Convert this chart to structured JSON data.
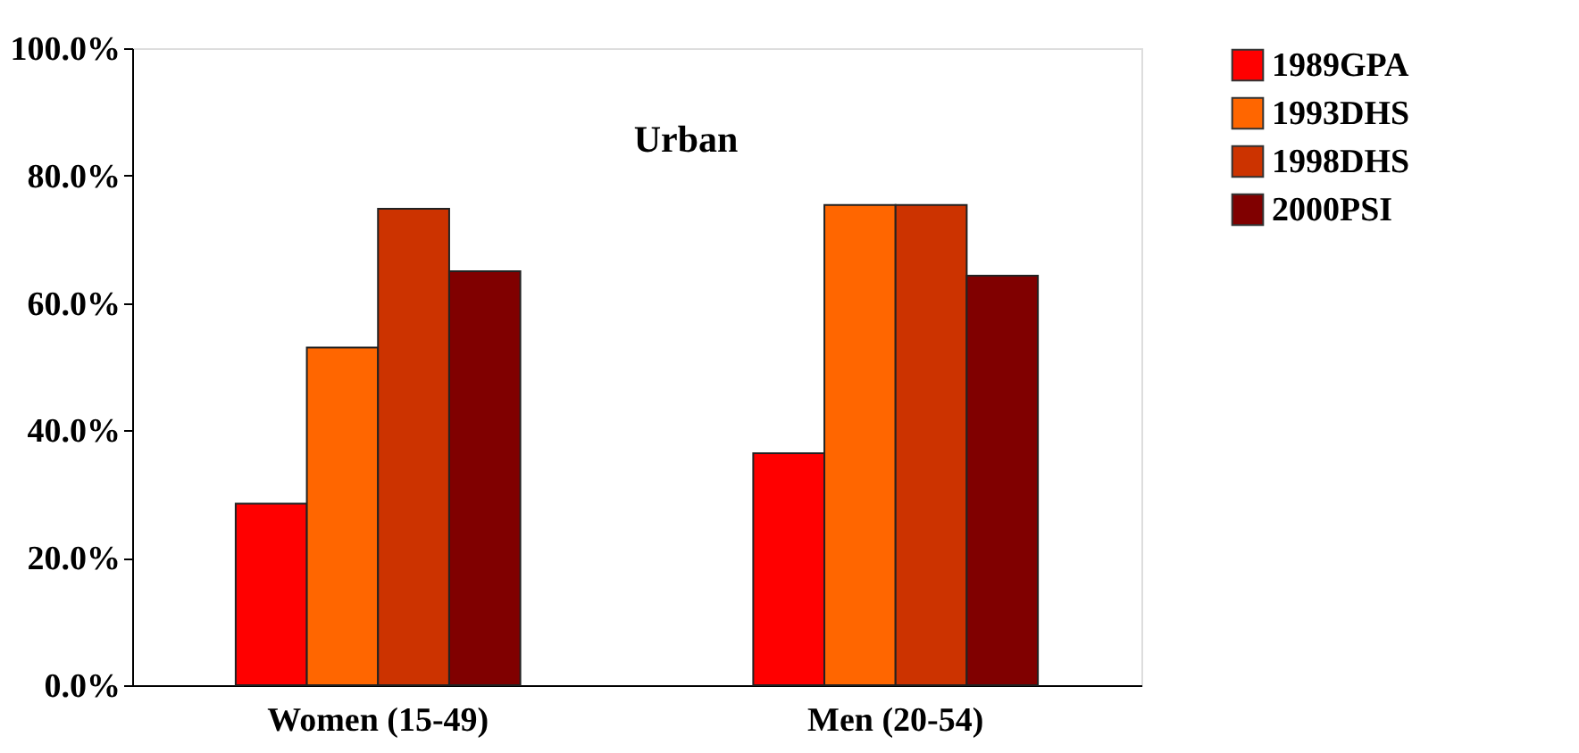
{
  "chart_data": {
    "type": "bar",
    "title": "Urban",
    "categories": [
      "Women (15-49)",
      "Men (20-54)"
    ],
    "series": [
      {
        "name": "1989GPA",
        "color": "#ff0000",
        "values": [
          28.5,
          36.4
        ]
      },
      {
        "name": "1993DHS",
        "color": "#ff6600",
        "values": [
          53.0,
          75.4
        ]
      },
      {
        "name": "1998DHS",
        "color": "#cc3300",
        "values": [
          74.8,
          75.4
        ]
      },
      {
        "name": "2000PSI",
        "color": "#800000",
        "values": [
          65.0,
          64.3
        ]
      }
    ],
    "ylim": [
      0,
      100
    ],
    "yticks": [
      {
        "value": 0,
        "label": "0.0%"
      },
      {
        "value": 20,
        "label": "20.0%"
      },
      {
        "value": 40,
        "label": "40.0%"
      },
      {
        "value": 60,
        "label": "60.0%"
      },
      {
        "value": 80,
        "label": "80.0%"
      },
      {
        "value": 100,
        "label": "100.0%"
      }
    ],
    "grid": false,
    "legend": "right"
  }
}
